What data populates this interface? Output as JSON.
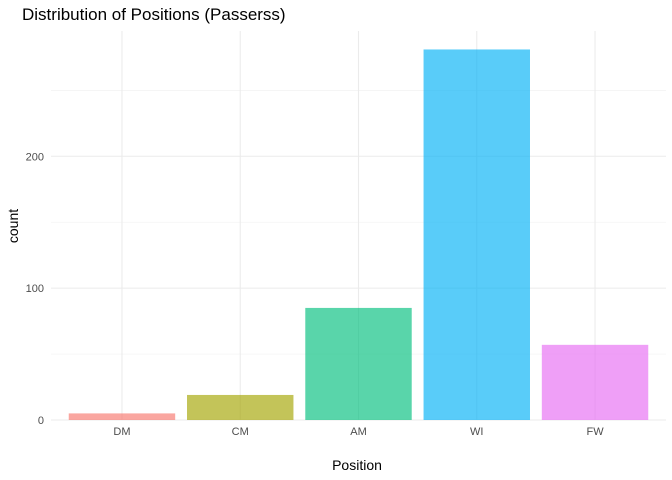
{
  "chart_data": {
    "type": "bar",
    "title": "Distribution of Positions (Passerss)",
    "xlabel": "Position",
    "ylabel": "count",
    "categories": [
      "DM",
      "CM",
      "AM",
      "WI",
      "FW"
    ],
    "values": [
      5,
      19,
      85,
      281,
      57
    ],
    "colors": [
      "#F8766D",
      "#A3A500",
      "#00BF7D",
      "#00B0F6",
      "#E76BF3"
    ],
    "bar_opacity": 0.65,
    "yticks": [
      0,
      100,
      200
    ],
    "ylim": [
      0,
      295
    ],
    "grid": true,
    "legend": "none"
  }
}
